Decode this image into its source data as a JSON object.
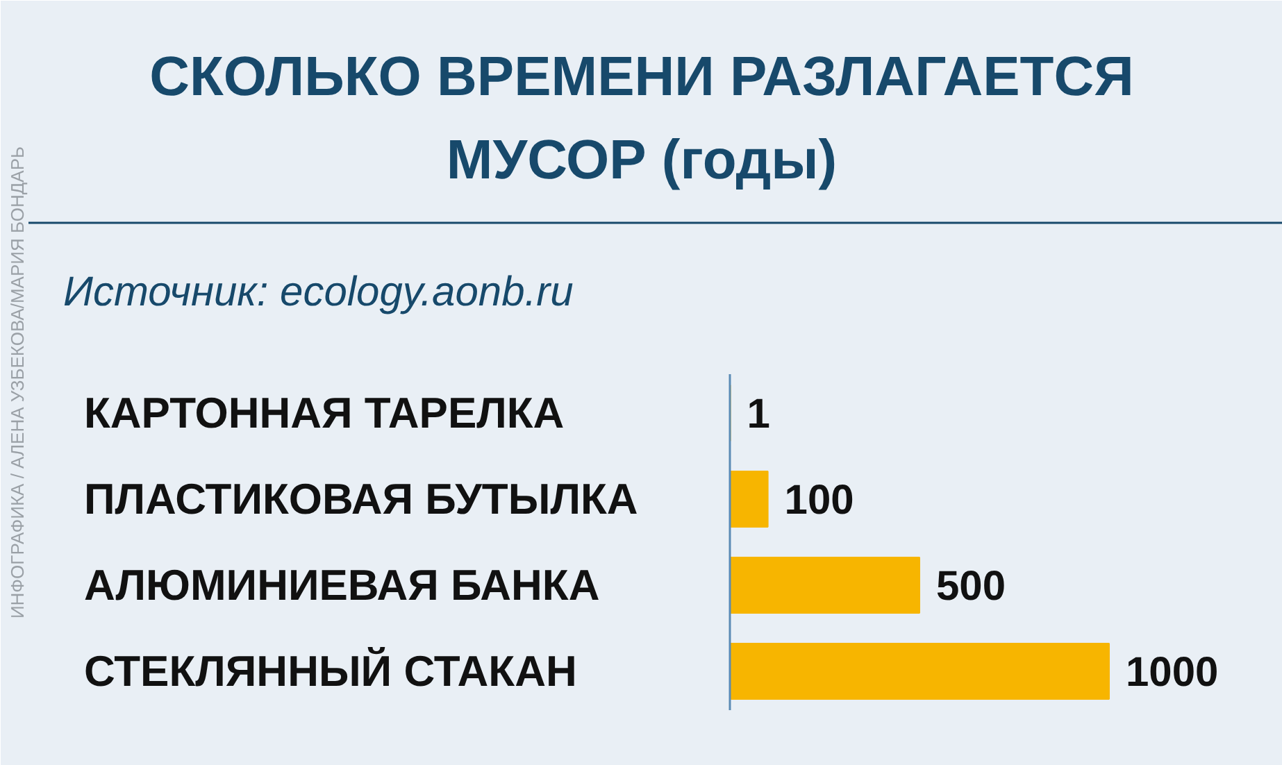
{
  "chart_data": {
    "type": "bar",
    "orientation": "horizontal",
    "title": "СКОЛЬКО ВРЕМЕНИ РАЗЛАГАЕТСЯ\nМУСОР (годы)",
    "annotations": [
      "Источник: ecology.aonb.ru",
      "ИНФОГРАФИКА / АЛЕНА УЗБЕКОВА/МАРИЯ БОНДАРЬ"
    ],
    "categories": [
      "КАРТОННАЯ ТАРЕЛКА",
      "ПЛАСТИКОВАЯ БУТЫЛКА",
      "АЛЮМИНИЕВАЯ БАНКА",
      "СТЕКЛЯННЫЙ СТАКАН"
    ],
    "values": [
      1,
      100,
      500,
      1000
    ],
    "color": "#f7b500",
    "data_labels": true
  }
}
